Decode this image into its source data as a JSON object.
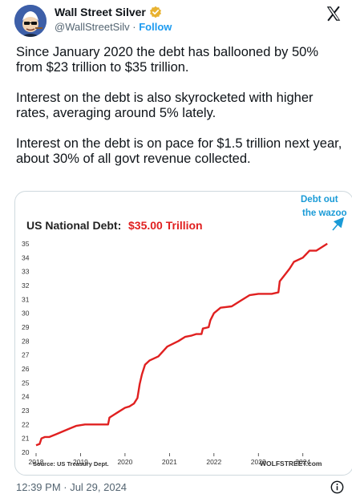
{
  "account": {
    "name": "Wall Street Silver",
    "handle": "@WallStreetSilv",
    "separator": "·",
    "follow_label": "Follow"
  },
  "tweet": {
    "paragraphs": [
      "Since January 2020 the debt has ballooned by 50% from $23 trillion to $35 trillion.",
      "Interest on the debt is also skyrocketed with higher rates, averaging around 5% lately.",
      "Interest on the debt is on pace for $1.5 trillion next year, about 30% of all govt revenue collected."
    ],
    "timestamp": "12:39 PM · Jul 29, 2024"
  },
  "icons": {
    "verified": "verified-badge-icon",
    "platform": "x-logo-icon",
    "info": "info-icon"
  },
  "colors": {
    "accent": "#1d9bf0",
    "line": "#e02020",
    "annotation": "#1a9bd7"
  },
  "chart_data": {
    "type": "line",
    "title": "US National Debt:",
    "title_value": "$35.00 Trillion",
    "annotation": "Debt out the wazoo",
    "source": "Source: US Treasury Dept.",
    "credit": "WOLFSTREET.com",
    "xlabel": "",
    "ylabel": "",
    "x_ticks": [
      "2018",
      "2019",
      "2020",
      "2021",
      "2022",
      "2023",
      "2024"
    ],
    "y_ticks": [
      20,
      21,
      22,
      23,
      24,
      25,
      26,
      27,
      28,
      29,
      30,
      31,
      32,
      33,
      34,
      35
    ],
    "xlim": [
      2018.0,
      2024.6
    ],
    "ylim": [
      20,
      35.4
    ],
    "grid": false,
    "series": [
      {
        "values": [
          [
            2018.0,
            20.5
          ],
          [
            2018.08,
            20.6
          ],
          [
            2018.12,
            21.0
          ],
          [
            2018.2,
            21.1
          ],
          [
            2018.3,
            21.1
          ],
          [
            2018.45,
            21.3
          ],
          [
            2018.6,
            21.5
          ],
          [
            2018.75,
            21.7
          ],
          [
            2018.9,
            21.9
          ],
          [
            2019.1,
            22.0
          ],
          [
            2019.2,
            22.0
          ],
          [
            2019.35,
            22.0
          ],
          [
            2019.55,
            22.0
          ],
          [
            2019.62,
            22.0
          ],
          [
            2019.65,
            22.5
          ],
          [
            2019.75,
            22.7
          ],
          [
            2019.85,
            22.9
          ],
          [
            2020.0,
            23.2
          ],
          [
            2020.1,
            23.3
          ],
          [
            2020.2,
            23.5
          ],
          [
            2020.28,
            23.9
          ],
          [
            2020.33,
            24.9
          ],
          [
            2020.38,
            25.6
          ],
          [
            2020.45,
            26.3
          ],
          [
            2020.55,
            26.6
          ],
          [
            2020.75,
            26.9
          ],
          [
            2020.95,
            27.6
          ],
          [
            2021.2,
            28.0
          ],
          [
            2021.35,
            28.3
          ],
          [
            2021.5,
            28.4
          ],
          [
            2021.6,
            28.5
          ],
          [
            2021.72,
            28.5
          ],
          [
            2021.75,
            28.9
          ],
          [
            2021.88,
            29.0
          ],
          [
            2021.92,
            29.5
          ],
          [
            2022.0,
            30.0
          ],
          [
            2022.15,
            30.4
          ],
          [
            2022.4,
            30.5
          ],
          [
            2022.6,
            30.9
          ],
          [
            2022.8,
            31.3
          ],
          [
            2023.0,
            31.4
          ],
          [
            2023.3,
            31.4
          ],
          [
            2023.45,
            31.5
          ],
          [
            2023.48,
            32.3
          ],
          [
            2023.58,
            32.7
          ],
          [
            2023.7,
            33.2
          ],
          [
            2023.8,
            33.7
          ],
          [
            2024.0,
            34.0
          ],
          [
            2024.15,
            34.5
          ],
          [
            2024.3,
            34.5
          ],
          [
            2024.45,
            34.8
          ],
          [
            2024.55,
            35.0
          ]
        ]
      }
    ]
  }
}
